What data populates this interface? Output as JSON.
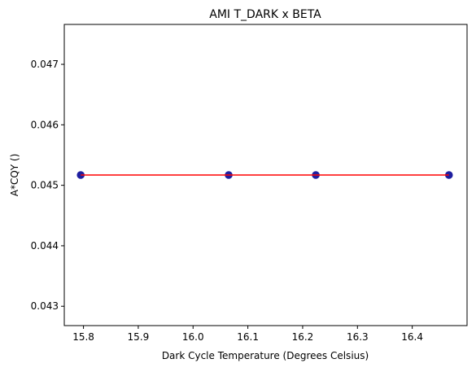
{
  "chart_data": {
    "type": "scatter",
    "title": "AMI T_DARK x BETA",
    "xlabel": "Dark Cycle Temperature (Degrees Celsius)",
    "ylabel": "A*CQY ()",
    "xlim": [
      15.765,
      16.5
    ],
    "ylim": [
      0.04268,
      0.04766
    ],
    "xticks": [
      15.8,
      15.9,
      16.0,
      16.1,
      16.2,
      16.3,
      16.4
    ],
    "xtick_labels": [
      "15.8",
      "15.9",
      "16.0",
      "16.1",
      "16.2",
      "16.3",
      "16.4"
    ],
    "yticks": [
      0.043,
      0.044,
      0.045,
      0.046,
      0.047
    ],
    "ytick_labels": [
      "0.043",
      "0.044",
      "0.045",
      "0.046",
      "0.047"
    ],
    "grid": false,
    "legend": "none",
    "series": [
      {
        "kind": "scatter",
        "color": "#1f1fa0",
        "x": [
          15.795,
          16.065,
          16.224,
          16.467
        ],
        "y": [
          0.04517,
          0.04517,
          0.04517,
          0.04517
        ]
      },
      {
        "kind": "line",
        "color": "#ff0000",
        "x": [
          15.795,
          16.467
        ],
        "y": [
          0.04517,
          0.04517
        ]
      }
    ]
  }
}
